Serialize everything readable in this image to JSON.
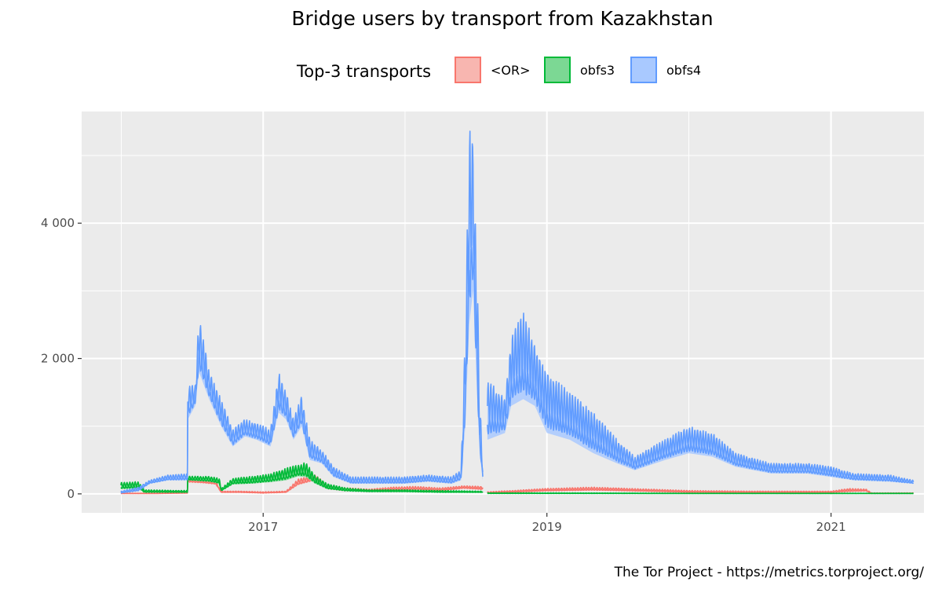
{
  "chart_data": {
    "type": "line",
    "title": "Bridge users by transport from Kazakhstan",
    "caption": "The Tor Project - https://metrics.torproject.org/",
    "xlabel": "",
    "ylabel": "",
    "xlim": [
      "2015-09-22",
      "2021-08-28"
    ],
    "ylim": [
      -280,
      5650
    ],
    "grid": true,
    "legend": {
      "title": "Top-3 transports",
      "placement": "top"
    },
    "x_ticks": [
      {
        "date": "2017-01-01",
        "label": "2017"
      },
      {
        "date": "2019-01-01",
        "label": "2019"
      },
      {
        "date": "2021-01-01",
        "label": "2021"
      }
    ],
    "y_ticks": [
      {
        "value": 0,
        "label": "0"
      },
      {
        "value": 2000,
        "label": "2 000"
      },
      {
        "value": 4000,
        "label": "4 000"
      }
    ],
    "series": [
      {
        "name": "<OR>",
        "line_color": "#f8766d",
        "fill_color": "#f8b6b0",
        "points": [
          [
            "2016-01-01",
            [
              5,
              10
            ]
          ],
          [
            "2016-04-01",
            [
              5,
              10
            ]
          ],
          [
            "2016-06-20",
            [
              10,
              20
            ]
          ],
          [
            "2016-06-21",
            [
              170,
              230
            ]
          ],
          [
            "2016-08-01",
            [
              160,
              200
            ]
          ],
          [
            "2016-09-01",
            [
              140,
              190
            ]
          ],
          [
            "2016-09-15",
            [
              20,
              40
            ]
          ],
          [
            "2016-11-01",
            [
              20,
              40
            ]
          ],
          [
            "2017-01-01",
            [
              10,
              30
            ]
          ],
          [
            "2017-03-01",
            [
              20,
              40
            ]
          ],
          [
            "2017-04-01",
            [
              130,
              220
            ]
          ],
          [
            "2017-05-15",
            [
              200,
              280
            ]
          ],
          [
            "2017-06-15",
            [
              70,
              140
            ]
          ],
          [
            "2017-08-01",
            [
              40,
              90
            ]
          ],
          [
            "2017-10-01",
            [
              40,
              70
            ]
          ],
          [
            "2017-12-01",
            [
              50,
              100
            ]
          ],
          [
            "2018-02-01",
            [
              60,
              110
            ]
          ],
          [
            "2018-04-01",
            [
              40,
              90
            ]
          ],
          [
            "2018-06-01",
            [
              80,
              120
            ]
          ],
          [
            "2018-07-20",
            [
              60,
              110
            ]
          ],
          null,
          [
            "2018-08-01",
            [
              10,
              30
            ]
          ],
          [
            "2018-10-01",
            [
              20,
              50
            ]
          ],
          [
            "2019-01-01",
            [
              40,
              80
            ]
          ],
          [
            "2019-05-01",
            [
              50,
              100
            ]
          ],
          [
            "2019-08-01",
            [
              40,
              80
            ]
          ],
          [
            "2020-01-01",
            [
              20,
              50
            ]
          ],
          [
            "2020-06-01",
            [
              20,
              40
            ]
          ],
          [
            "2021-01-01",
            [
              20,
              40
            ]
          ],
          [
            "2021-02-15",
            [
              30,
              80
            ]
          ],
          [
            "2021-04-01",
            [
              40,
              70
            ]
          ],
          [
            "2021-04-15",
            [
              5,
              15
            ]
          ],
          [
            "2021-08-01",
            [
              5,
              15
            ]
          ]
        ]
      },
      {
        "name": "obfs3",
        "line_color": "#00ba38",
        "fill_color": "#7cd894",
        "points": [
          [
            "2016-01-01",
            [
              70,
              170
            ]
          ],
          [
            "2016-02-15",
            [
              80,
              180
            ]
          ],
          [
            "2016-03-01",
            [
              20,
              60
            ]
          ],
          [
            "2016-06-20",
            [
              20,
              50
            ]
          ],
          [
            "2016-06-21",
            [
              200,
              260
            ]
          ],
          [
            "2016-08-15",
            [
              180,
              260
            ]
          ],
          [
            "2016-09-10",
            [
              150,
              230
            ]
          ],
          [
            "2016-09-15",
            [
              40,
              80
            ]
          ],
          [
            "2016-10-15",
            [
              140,
              230
            ]
          ],
          [
            "2016-12-01",
            [
              150,
              260
            ]
          ],
          [
            "2017-01-15",
            [
              170,
              290
            ]
          ],
          [
            "2017-03-01",
            [
              200,
              380
            ]
          ],
          [
            "2017-04-01",
            [
              260,
              430
            ]
          ],
          [
            "2017-04-20",
            [
              250,
              470
            ]
          ],
          [
            "2017-05-15",
            [
              150,
              270
            ]
          ],
          [
            "2017-06-15",
            [
              70,
              150
            ]
          ],
          [
            "2017-08-01",
            [
              40,
              90
            ]
          ],
          [
            "2017-10-01",
            [
              30,
              60
            ]
          ],
          [
            "2018-01-01",
            [
              30,
              60
            ]
          ],
          [
            "2018-04-01",
            [
              20,
              50
            ]
          ],
          [
            "2018-07-20",
            [
              20,
              40
            ]
          ],
          null,
          [
            "2018-08-01",
            [
              5,
              15
            ]
          ],
          [
            "2019-01-01",
            [
              5,
              15
            ]
          ],
          [
            "2020-01-01",
            [
              5,
              10
            ]
          ],
          [
            "2021-01-01",
            [
              5,
              10
            ]
          ],
          [
            "2021-08-01",
            [
              5,
              10
            ]
          ]
        ]
      },
      {
        "name": "obfs4",
        "line_color": "#619cff",
        "fill_color": "#a9c9ff",
        "points": [
          [
            "2016-01-01",
            [
              10,
              40
            ]
          ],
          [
            "2016-02-15",
            [
              40,
              100
            ]
          ],
          [
            "2016-03-15",
            [
              150,
              200
            ]
          ],
          [
            "2016-05-01",
            [
              200,
              280
            ]
          ],
          [
            "2016-06-20",
            [
              200,
              300
            ]
          ],
          [
            "2016-06-21",
            [
              1100,
              1600
            ]
          ],
          [
            "2016-07-10",
            [
              1300,
              1600
            ]
          ],
          [
            "2016-07-20",
            [
              1800,
              2650
            ]
          ],
          [
            "2016-08-15",
            [
              1400,
              1800
            ]
          ],
          [
            "2016-09-15",
            [
              1000,
              1400
            ]
          ],
          [
            "2016-10-15",
            [
              700,
              950
            ]
          ],
          [
            "2016-11-15",
            [
              850,
              1100
            ]
          ],
          [
            "2016-12-15",
            [
              800,
              1050
            ]
          ],
          [
            "2017-01-20",
            [
              700,
              950
            ]
          ],
          [
            "2017-02-10",
            [
              1200,
              1800
            ]
          ],
          [
            "2017-03-01",
            [
              1100,
              1500
            ]
          ],
          [
            "2017-03-20",
            [
              800,
              1100
            ]
          ],
          [
            "2017-04-10",
            [
              1000,
              1450
            ]
          ],
          [
            "2017-05-01",
            [
              500,
              800
            ]
          ],
          [
            "2017-06-01",
            [
              450,
              650
            ]
          ],
          [
            "2017-07-01",
            [
              250,
              400
            ]
          ],
          [
            "2017-08-15",
            [
              150,
              250
            ]
          ],
          [
            "2017-10-01",
            [
              150,
              250
            ]
          ],
          [
            "2018-01-01",
            [
              150,
              250
            ]
          ],
          [
            "2018-03-01",
            [
              180,
              280
            ]
          ],
          [
            "2018-05-01",
            [
              150,
              250
            ]
          ],
          [
            "2018-05-25",
            [
              200,
              350
            ]
          ],
          [
            "2018-06-05",
            [
              1000,
              2400
            ]
          ],
          [
            "2018-06-15",
            [
              2500,
              5400
            ]
          ],
          [
            "2018-06-25",
            [
              3000,
              5200
            ]
          ],
          [
            "2018-07-05",
            [
              1500,
              3500
            ]
          ],
          [
            "2018-07-12",
            [
              600,
              1500
            ]
          ],
          [
            "2018-07-20",
            [
              200,
              400
            ]
          ],
          null,
          [
            "2018-08-01",
            [
              800,
              1700
            ]
          ],
          [
            "2018-09-15",
            [
              900,
              1400
            ]
          ],
          [
            "2018-10-01",
            [
              1300,
              2300
            ]
          ],
          [
            "2018-11-01",
            [
              1400,
              2700
            ]
          ],
          [
            "2018-12-01",
            [
              1300,
              2200
            ]
          ],
          [
            "2019-01-01",
            [
              900,
              1800
            ]
          ],
          [
            "2019-03-01",
            [
              800,
              1500
            ]
          ],
          [
            "2019-05-01",
            [
              600,
              1200
            ]
          ],
          [
            "2019-07-01",
            [
              450,
              800
            ]
          ],
          [
            "2019-08-15",
            [
              350,
              550
            ]
          ],
          [
            "2019-11-01",
            [
              500,
              800
            ]
          ],
          [
            "2020-01-01",
            [
              600,
              1000
            ]
          ],
          [
            "2020-03-01",
            [
              550,
              900
            ]
          ],
          [
            "2020-05-01",
            [
              400,
              600
            ]
          ],
          [
            "2020-08-01",
            [
              300,
              450
            ]
          ],
          [
            "2020-11-01",
            [
              300,
              450
            ]
          ],
          [
            "2021-01-01",
            [
              250,
              400
            ]
          ],
          [
            "2021-03-01",
            [
              200,
              300
            ]
          ],
          [
            "2021-06-01",
            [
              180,
              280
            ]
          ],
          [
            "2021-08-01",
            [
              150,
              200
            ]
          ]
        ]
      }
    ]
  }
}
